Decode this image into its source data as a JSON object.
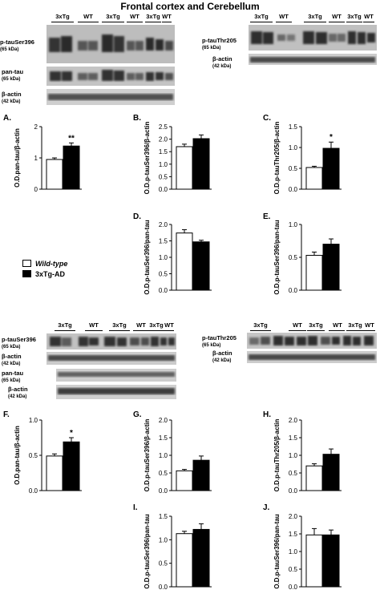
{
  "title": "Frontal cortex and Cerebellum",
  "legend": {
    "wild_type": "Wild-type",
    "tg": "3xTg-AD"
  },
  "colors": {
    "wild_type": "#ffffff",
    "tg": "#000000"
  },
  "blots_top": {
    "left": {
      "lanes": [
        "3xTg",
        "WT",
        "3xTg",
        "WT",
        "3xTg",
        "WT"
      ],
      "rows": [
        {
          "label": "p-tauSer396",
          "kda": "(65 kDa)"
        },
        {
          "label": "pan-tau",
          "kda": "(65 kDa)"
        },
        {
          "label": "β-actin",
          "kda": "(42 kDa)"
        }
      ]
    },
    "right": {
      "lanes": [
        "3xTg",
        "WT",
        "3xTg",
        "WT",
        "3xTg",
        "WT"
      ],
      "rows": [
        {
          "label": "p-tauThr205",
          "kda": "(65 kDa)"
        },
        {
          "label": "β-actin",
          "kda": "(42 kDa)"
        }
      ]
    }
  },
  "blots_bottom": {
    "left": {
      "lanes": [
        "3xTg",
        "WT",
        "3xTg",
        "WT",
        "3xTg",
        "WT"
      ],
      "rows": [
        {
          "label": "p-tauSer396",
          "kda": "(65 kDa)"
        },
        {
          "label": "β-actin",
          "kda": "(42 kDa)"
        },
        {
          "label": "pan-tau",
          "kda": "(65 kDa)"
        },
        {
          "label": "β-actin",
          "kda": "(42 kDa)"
        }
      ]
    },
    "right": {
      "lanes": [
        "3xTg",
        "WT",
        "3xTg",
        "WT",
        "3xTg",
        "WT"
      ],
      "rows": [
        {
          "label": "p-tauThr205",
          "kda": "(65 kDa)"
        },
        {
          "label": "β-actin",
          "kda": "(42 kDa)"
        }
      ]
    }
  },
  "chart_data": [
    {
      "type": "bar",
      "panel": "A.",
      "ylabel": "O.D.pan-tau/β-actin",
      "ylim": [
        0,
        2
      ],
      "yticks": [
        "0",
        "1",
        "2"
      ],
      "series": [
        {
          "name": "Wild-type",
          "values": [
            0.95
          ],
          "errors": [
            0.05
          ]
        },
        {
          "name": "3xTg-AD",
          "values": [
            1.38
          ],
          "errors": [
            0.1
          ]
        }
      ],
      "annotation": "**"
    },
    {
      "type": "bar",
      "panel": "B.",
      "ylabel": "O.D.p-tauSer396/β-actin",
      "ylim": [
        0,
        2.5
      ],
      "yticks": [
        "0.0",
        "0.5",
        "1.0",
        "1.5",
        "2.0",
        "2.5"
      ],
      "series": [
        {
          "name": "Wild-type",
          "values": [
            1.7
          ],
          "errors": [
            0.1
          ]
        },
        {
          "name": "3xTg-AD",
          "values": [
            2.02
          ],
          "errors": [
            0.15
          ]
        }
      ],
      "annotation": ""
    },
    {
      "type": "bar",
      "panel": "C.",
      "ylabel": "O.D.p-tauThr205/β-actin",
      "ylim": [
        0,
        1.5
      ],
      "yticks": [
        "0.0",
        "0.5",
        "1.0",
        "1.5"
      ],
      "series": [
        {
          "name": "Wild-type",
          "values": [
            0.52
          ],
          "errors": [
            0.03
          ]
        },
        {
          "name": "3xTg-AD",
          "values": [
            0.98
          ],
          "errors": [
            0.15
          ]
        }
      ],
      "annotation": "*"
    },
    {
      "type": "bar",
      "panel": "D.",
      "ylabel": "O.D.p-tauSer396/pan-tau",
      "ylim": [
        0,
        2.0
      ],
      "yticks": [
        "0.0",
        "0.5",
        "1.0",
        "1.5",
        "2.0"
      ],
      "series": [
        {
          "name": "Wild-type",
          "values": [
            1.74
          ],
          "errors": [
            0.1
          ]
        },
        {
          "name": "3xTg-AD",
          "values": [
            1.47
          ],
          "errors": [
            0.05
          ]
        }
      ],
      "annotation": ""
    },
    {
      "type": "bar",
      "panel": "E.",
      "ylabel": "O.D.p-tauSer396/pan-tau",
      "ylim": [
        0,
        1.0
      ],
      "yticks": [
        "0.0",
        "0.5",
        "1.0"
      ],
      "series": [
        {
          "name": "Wild-type",
          "values": [
            0.53
          ],
          "errors": [
            0.05
          ]
        },
        {
          "name": "3xTg-AD",
          "values": [
            0.7
          ],
          "errors": [
            0.08
          ]
        }
      ],
      "annotation": ""
    },
    {
      "type": "bar",
      "panel": "F.",
      "ylabel": "O.D.pan-tau/β-actin",
      "ylim": [
        0,
        1.0
      ],
      "yticks": [
        "0.0",
        "0.5",
        "1.0"
      ],
      "series": [
        {
          "name": "Wild-type",
          "values": [
            0.49
          ],
          "errors": [
            0.03
          ]
        },
        {
          "name": "3xTg-AD",
          "values": [
            0.69
          ],
          "errors": [
            0.06
          ]
        }
      ],
      "annotation": "*"
    },
    {
      "type": "bar",
      "panel": "G.",
      "ylabel": "O.D.p-tauSer396/β-actin",
      "ylim": [
        0,
        2.0
      ],
      "yticks": [
        "0.0",
        "0.5",
        "1.0",
        "1.5",
        "2.0"
      ],
      "series": [
        {
          "name": "Wild-type",
          "values": [
            0.56
          ],
          "errors": [
            0.04
          ]
        },
        {
          "name": "3xTg-AD",
          "values": [
            0.86
          ],
          "errors": [
            0.12
          ]
        }
      ],
      "annotation": ""
    },
    {
      "type": "bar",
      "panel": "H.",
      "ylabel": "O.D.p-tauThr205/β-actin",
      "ylim": [
        0,
        2.0
      ],
      "yticks": [
        "0.0",
        "0.5",
        "1.0",
        "1.5",
        "2.0"
      ],
      "series": [
        {
          "name": "Wild-type",
          "values": [
            0.7
          ],
          "errors": [
            0.06
          ]
        },
        {
          "name": "3xTg-AD",
          "values": [
            1.03
          ],
          "errors": [
            0.15
          ]
        }
      ],
      "annotation": ""
    },
    {
      "type": "bar",
      "panel": "I.",
      "ylabel": "O.D.p-tauSer396/pan-tau",
      "ylim": [
        0,
        1.5
      ],
      "yticks": [
        "0.0",
        "0.5",
        "1.0",
        "1.5"
      ],
      "series": [
        {
          "name": "Wild-type",
          "values": [
            1.13
          ],
          "errors": [
            0.05
          ]
        },
        {
          "name": "3xTg-AD",
          "values": [
            1.22
          ],
          "errors": [
            0.12
          ]
        }
      ],
      "annotation": ""
    },
    {
      "type": "bar",
      "panel": "J.",
      "ylabel": "O.D.p-tauSer396/pan-tau",
      "ylim": [
        0,
        2.0
      ],
      "yticks": [
        "0.0",
        "0.5",
        "1.0",
        "1.5",
        "2.0"
      ],
      "series": [
        {
          "name": "Wild-type",
          "values": [
            1.47
          ],
          "errors": [
            0.18
          ]
        },
        {
          "name": "3xTg-AD",
          "values": [
            1.47
          ],
          "errors": [
            0.14
          ]
        }
      ],
      "annotation": ""
    }
  ]
}
